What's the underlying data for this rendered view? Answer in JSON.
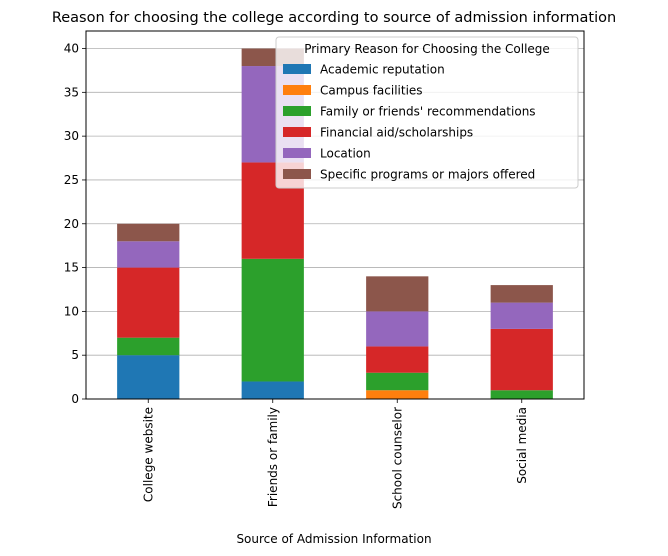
{
  "chart_data": {
    "type": "bar",
    "stacked": true,
    "title": "Reason for choosing the college according to source of admission information",
    "xlabel": "Source of Admission Information",
    "ylabel": "",
    "ylim": [
      0,
      42
    ],
    "yticks": [
      0,
      5,
      10,
      15,
      20,
      25,
      30,
      35,
      40
    ],
    "grid": "y",
    "legend_title": "Primary Reason for Choosing the College",
    "legend_position": "upper-right",
    "categories": [
      "College website",
      "Friends or family",
      "School counselor",
      "Social media"
    ],
    "series": [
      {
        "name": "Academic reputation",
        "color": "#1f77b4",
        "values": [
          5,
          2,
          0,
          0
        ]
      },
      {
        "name": "Campus facilities",
        "color": "#ff7f0e",
        "values": [
          0,
          0,
          1,
          0
        ]
      },
      {
        "name": "Family or friends' recommendations",
        "color": "#2ca02c",
        "values": [
          2,
          14,
          2,
          1
        ]
      },
      {
        "name": "Financial aid/scholarships",
        "color": "#d62728",
        "values": [
          8,
          11,
          3,
          7
        ]
      },
      {
        "name": "Location",
        "color": "#9467bd",
        "values": [
          3,
          11,
          4,
          3
        ]
      },
      {
        "name": "Specific programs or majors offered",
        "color": "#8c564b",
        "values": [
          2,
          2,
          4,
          2
        ]
      }
    ]
  }
}
